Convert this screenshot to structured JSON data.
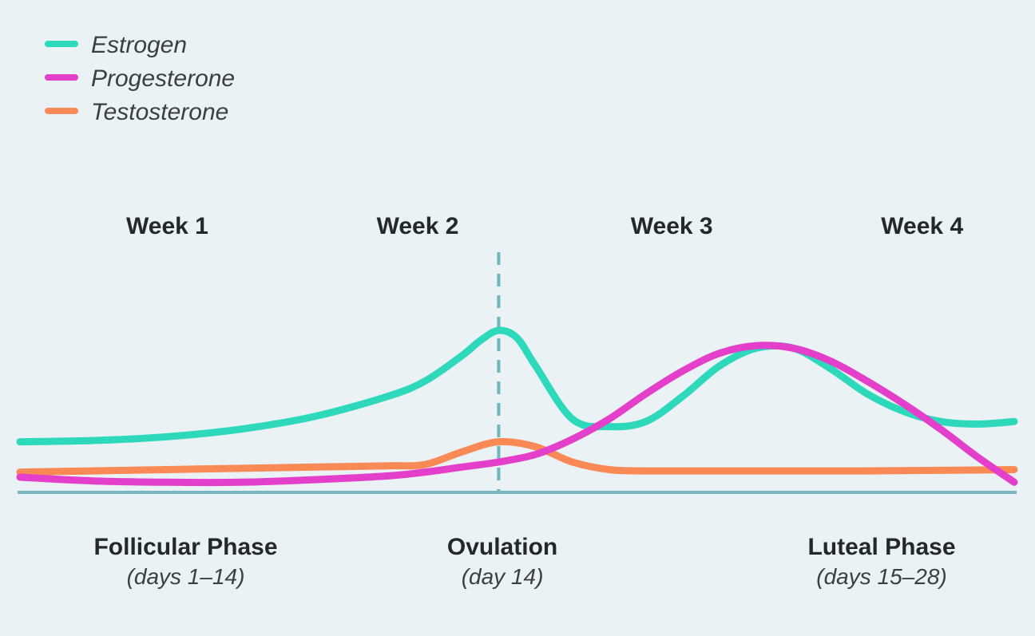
{
  "chart_data": {
    "type": "line",
    "title": "",
    "xlabel": "",
    "ylabel": "",
    "xlim": [
      1,
      28
    ],
    "ylim": [
      0,
      100
    ],
    "grid": false,
    "legend_placement": "top-left",
    "legend": [
      {
        "name": "Estrogen",
        "color": "#2dd8bb"
      },
      {
        "name": "Progesterone",
        "color": "#e33fcb"
      },
      {
        "name": "Testosterone",
        "color": "#f98a55"
      }
    ],
    "weeks": [
      {
        "label": "Week 1",
        "day": 5.0
      },
      {
        "label": "Week 2",
        "day": 11.8
      },
      {
        "label": "Week 3",
        "day": 18.7
      },
      {
        "label": "Week 4",
        "day": 25.5
      }
    ],
    "phases": [
      {
        "title": "Follicular Phase",
        "subtitle": "(days 1–14)",
        "day": 5.5
      },
      {
        "title": "Ovulation",
        "subtitle": "(day 14)",
        "day": 14.1
      },
      {
        "title": "Luteal Phase",
        "subtitle": "(days 15–28)",
        "day": 24.4
      }
    ],
    "ovulation_day": 14,
    "series": [
      {
        "name": "Estrogen",
        "color": "#2dd8bb",
        "x": [
          1,
          3,
          5,
          7,
          9,
          11,
          12,
          13,
          13.5,
          14,
          14.5,
          15,
          16,
          17,
          18,
          19,
          20,
          21,
          22,
          23,
          24,
          25,
          26,
          27,
          28
        ],
        "y": [
          20,
          20.5,
          22,
          25,
          30,
          38,
          44,
          54,
          60,
          64,
          61,
          50,
          29,
          26,
          28,
          38,
          50,
          57,
          57,
          49,
          39,
          32,
          28,
          27,
          28
        ]
      },
      {
        "name": "Progesterone",
        "color": "#e33fcb",
        "x": [
          1,
          3,
          5,
          7,
          9,
          11,
          12,
          13,
          14,
          15,
          16,
          17,
          18,
          19,
          20,
          21,
          22,
          23,
          24,
          25,
          26,
          27,
          28
        ],
        "y": [
          6,
          4.5,
          4,
          4,
          5,
          6.5,
          8,
          10,
          12,
          15,
          21,
          29,
          39,
          48,
          55,
          58,
          57,
          52,
          44,
          35,
          25,
          14,
          4
        ]
      },
      {
        "name": "Testosterone",
        "color": "#f98a55",
        "x": [
          1,
          3,
          5,
          7,
          9,
          11,
          12,
          13,
          14,
          15,
          16,
          17,
          18,
          20,
          22,
          24,
          26,
          28
        ],
        "y": [
          8,
          8.5,
          9,
          9.5,
          10,
          10.5,
          11,
          16,
          20,
          18,
          12,
          9,
          8.5,
          8.5,
          8.5,
          8.5,
          8.7,
          9
        ]
      }
    ]
  }
}
